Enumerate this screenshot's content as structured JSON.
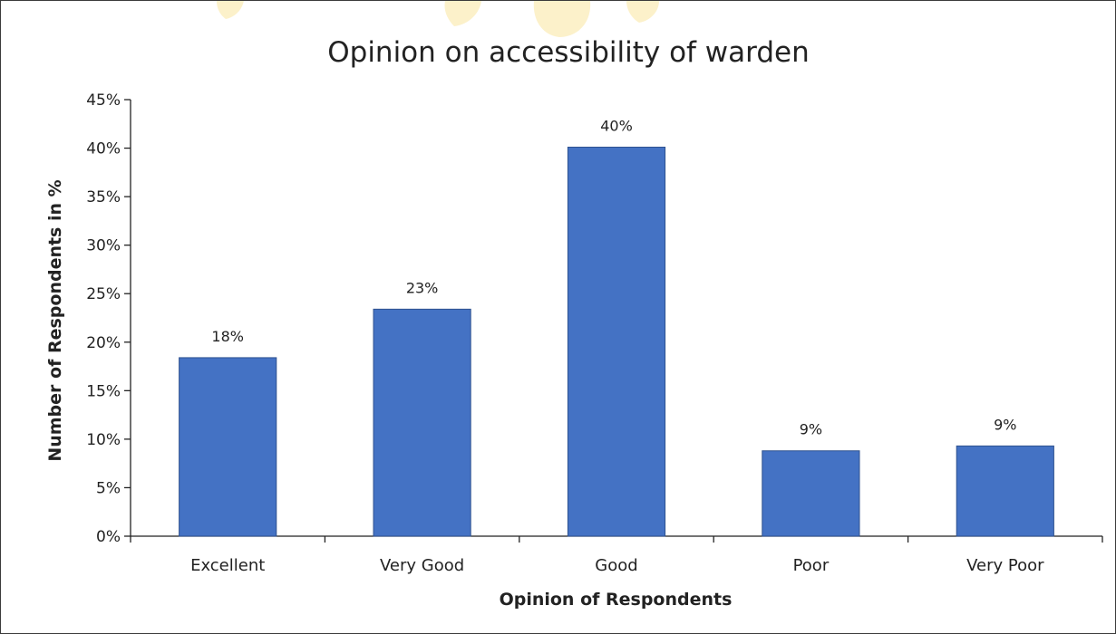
{
  "chart_data": {
    "type": "bar",
    "title": "Opinion on accessibility of warden",
    "xlabel": "Opinion of Respondents",
    "ylabel": "Number of Respondents in %",
    "categories": [
      "Excellent",
      "Very Good",
      "Good",
      "Poor",
      "Very Poor"
    ],
    "values": [
      18.4,
      23.4,
      40.1,
      8.8,
      9.3
    ],
    "data_labels": [
      "18%",
      "23%",
      "40%",
      "9%",
      "9%"
    ],
    "ylim": [
      0,
      45
    ],
    "yticks": [
      0,
      5,
      10,
      15,
      20,
      25,
      30,
      35,
      40,
      45
    ],
    "ytick_labels": [
      "0%",
      "5%",
      "10%",
      "15%",
      "20%",
      "25%",
      "30%",
      "35%",
      "40%",
      "45%"
    ],
    "grid": false,
    "legend": "none",
    "colors": {
      "bar_fill": "#4472C4",
      "bar_stroke": "#2F528F",
      "axis": "#222222"
    }
  }
}
